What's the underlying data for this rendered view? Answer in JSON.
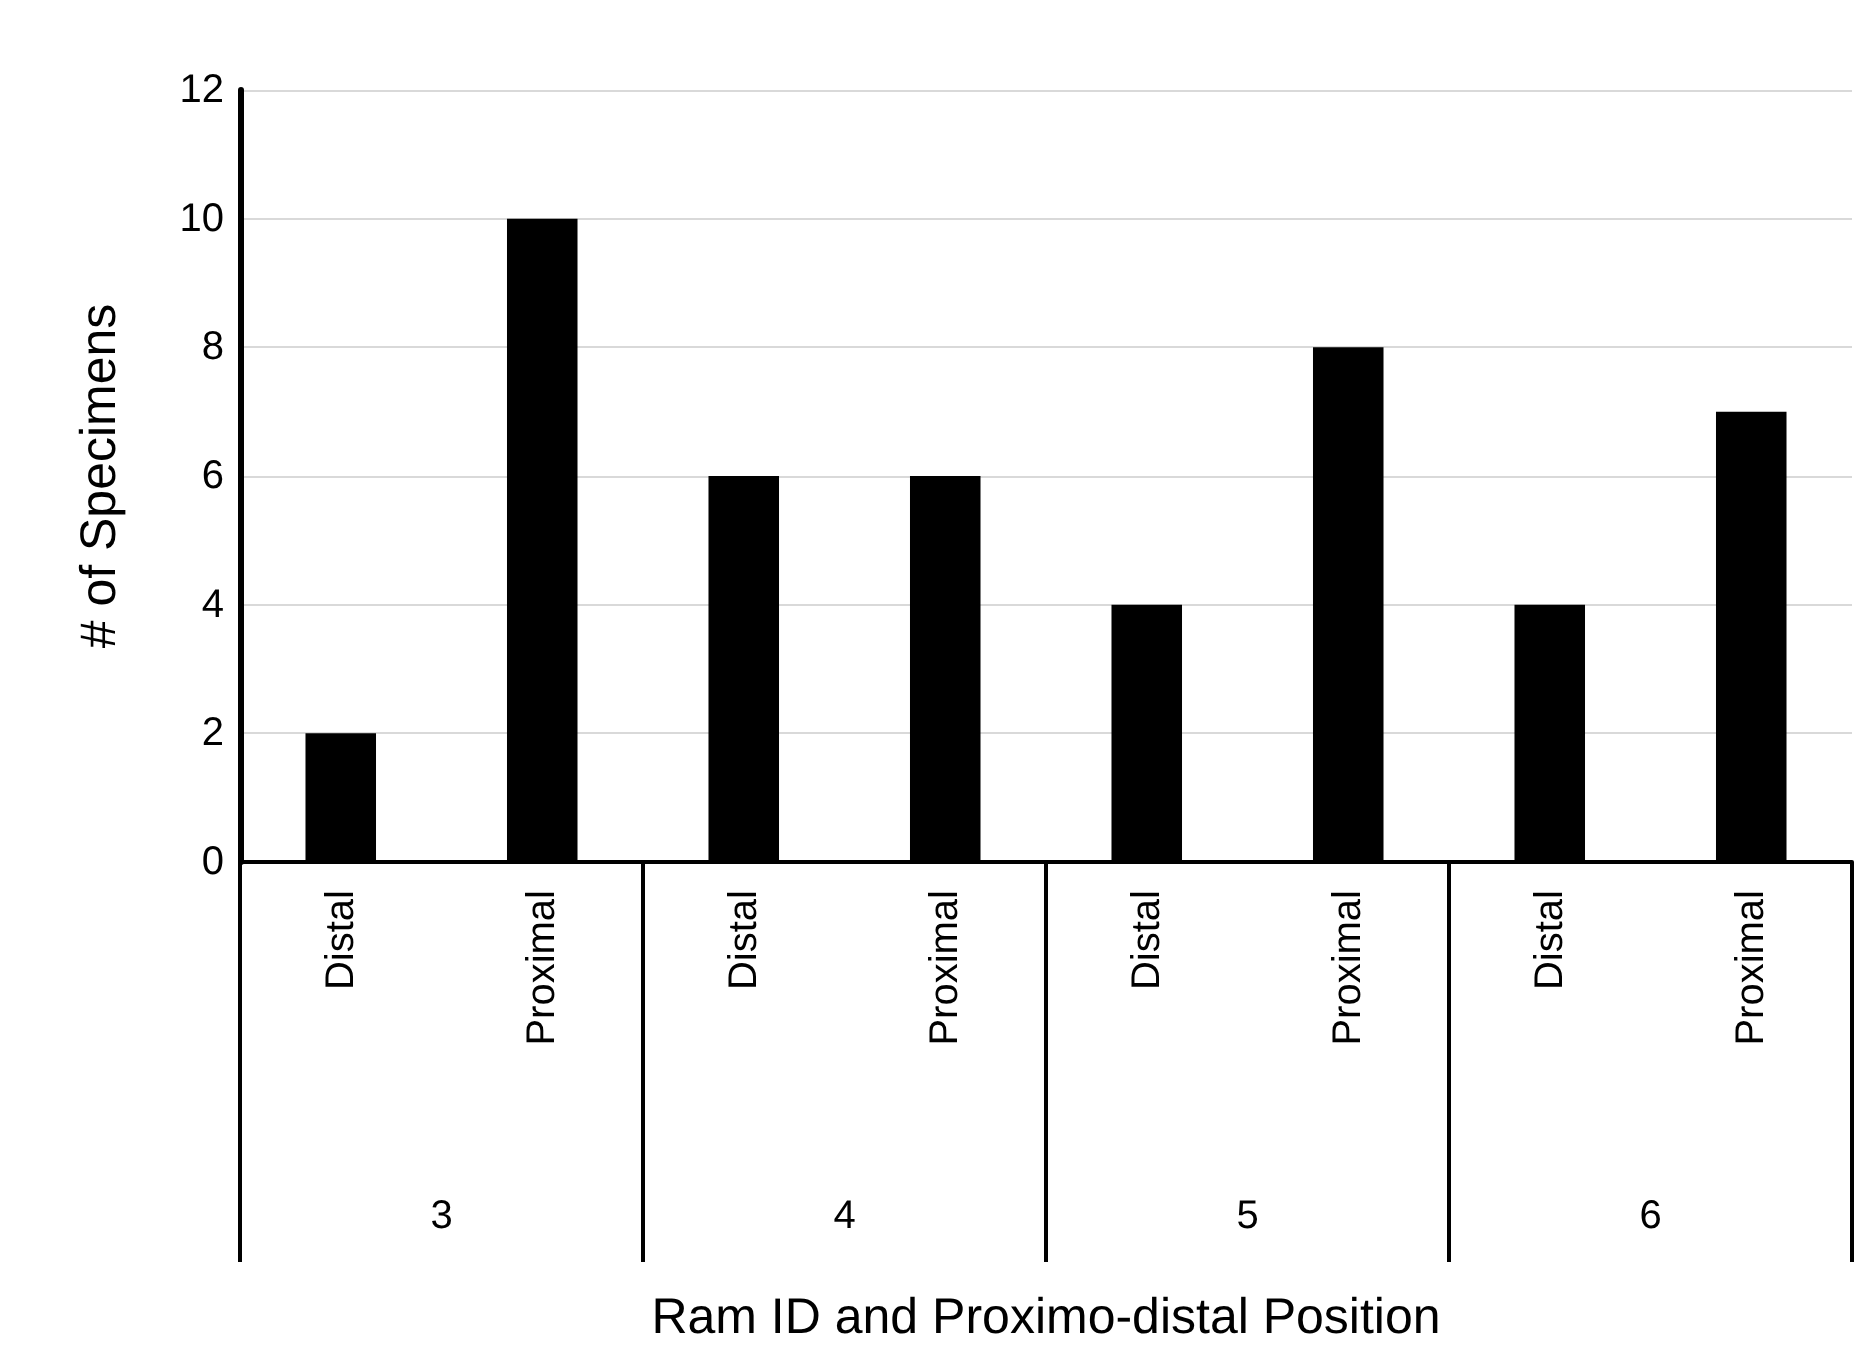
{
  "chart_data": {
    "type": "bar",
    "xlabel": "Ram ID and Proximo-distal Position",
    "ylabel": "# of Specimens",
    "categories": [
      "Distal",
      "Proximal",
      "Distal",
      "Proximal",
      "Distal",
      "Proximal",
      "Distal",
      "Proximal"
    ],
    "values": [
      2,
      10,
      6,
      6,
      4,
      8,
      4,
      7
    ],
    "color": "#000000",
    "ylim": [
      0,
      12
    ],
    "yticks": [
      0,
      2,
      4,
      6,
      8,
      10,
      12
    ],
    "grid": "y",
    "annotations": [
      "3",
      "4",
      "5",
      "6"
    ]
  }
}
